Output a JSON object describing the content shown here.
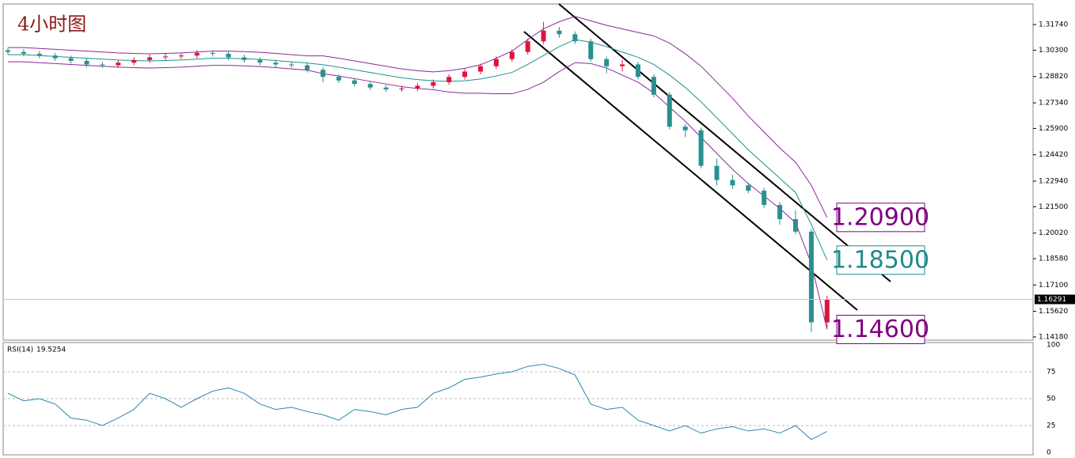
{
  "chart_data": [
    {
      "type": "candlestick",
      "title": "4小时图",
      "open": [
        1.303,
        1.302,
        1.301,
        1.3,
        1.2985,
        1.297,
        1.295,
        1.2945,
        1.296,
        1.2975,
        1.299,
        1.2995,
        1.3,
        1.3015,
        1.301,
        1.299,
        1.2975,
        1.296,
        1.295,
        1.2945,
        1.292,
        1.288,
        1.286,
        1.284,
        1.282,
        1.281,
        1.2815,
        1.283,
        1.285,
        1.288,
        1.291,
        1.294,
        1.298,
        1.302,
        1.308,
        1.314,
        1.312,
        1.308,
        1.298,
        1.294,
        1.295,
        1.288,
        1.278,
        1.26,
        1.258,
        1.238,
        1.23,
        1.227,
        1.224,
        1.216,
        1.208,
        1.201,
        1.15
      ],
      "high": [
        1.3045,
        1.3035,
        1.3025,
        1.3015,
        1.3,
        1.2985,
        1.2965,
        1.2975,
        1.299,
        1.3005,
        1.301,
        1.3015,
        1.303,
        1.303,
        1.3025,
        1.3005,
        1.299,
        1.2975,
        1.2965,
        1.296,
        1.2935,
        1.2895,
        1.2875,
        1.2855,
        1.2835,
        1.283,
        1.2845,
        1.2865,
        1.2895,
        1.2925,
        1.2955,
        1.2995,
        1.3035,
        1.3095,
        1.319,
        1.316,
        1.3135,
        1.3095,
        1.2995,
        1.2975,
        1.2965,
        1.2895,
        1.2795,
        1.2615,
        1.2595,
        1.242,
        1.233,
        1.2285,
        1.2255,
        1.2175,
        1.213,
        1.2025,
        1.165
      ],
      "low": [
        1.3005,
        1.2995,
        1.2985,
        1.297,
        1.2955,
        1.2935,
        1.293,
        1.293,
        1.2945,
        1.296,
        1.2975,
        1.298,
        1.2985,
        1.2995,
        1.2975,
        1.296,
        1.2945,
        1.2935,
        1.293,
        1.2905,
        1.285,
        1.2845,
        1.2825,
        1.2805,
        1.2795,
        1.2795,
        1.28,
        1.2815,
        1.2835,
        1.2865,
        1.2895,
        1.2925,
        1.2965,
        1.3005,
        1.3065,
        1.31,
        1.3065,
        1.2965,
        1.29,
        1.291,
        1.2865,
        1.2765,
        1.2585,
        1.254,
        1.2365,
        1.227,
        1.225,
        1.2225,
        1.2145,
        1.205,
        1.1995,
        1.1445,
        1.147
      ],
      "close": [
        1.302,
        1.301,
        1.3,
        1.2985,
        1.297,
        1.295,
        1.2945,
        1.296,
        1.2975,
        1.299,
        1.2995,
        1.3,
        1.3015,
        1.301,
        1.299,
        1.2975,
        1.296,
        1.295,
        1.2945,
        1.292,
        1.288,
        1.286,
        1.284,
        1.282,
        1.281,
        1.2815,
        1.283,
        1.285,
        1.288,
        1.291,
        1.294,
        1.298,
        1.302,
        1.308,
        1.314,
        1.312,
        1.308,
        1.298,
        1.294,
        1.295,
        1.288,
        1.278,
        1.26,
        1.258,
        1.238,
        1.23,
        1.227,
        1.224,
        1.216,
        1.208,
        1.201,
        1.15,
        1.1629
      ],
      "up_color": "#dc143c",
      "down_color": "#2a8f8f",
      "bands": [
        {
          "color": "#8b2a9b",
          "values": [
            1.3045,
            1.3045,
            1.304,
            1.3035,
            1.303,
            1.3025,
            1.302,
            1.3015,
            1.3012,
            1.301,
            1.3012,
            1.3015,
            1.302,
            1.3025,
            1.3025,
            1.3022,
            1.3018,
            1.3012,
            1.3005,
            1.2998,
            1.2998,
            1.2985,
            1.297,
            1.2955,
            1.294,
            1.2925,
            1.2915,
            1.2908,
            1.2915,
            1.2928,
            1.2948,
            1.2985,
            1.3025,
            1.309,
            1.315,
            1.319,
            1.322,
            1.3195,
            1.317,
            1.315,
            1.313,
            1.311,
            1.307,
            1.301,
            1.294,
            1.285,
            1.276,
            1.266,
            1.257,
            1.248,
            1.24,
            1.227,
            1.209
          ]
        },
        {
          "color": "#1f9090",
          "values": [
            1.3005,
            1.3005,
            1.3,
            1.2995,
            1.299,
            1.2985,
            1.298,
            1.2975,
            1.2972,
            1.297,
            1.2972,
            1.2975,
            1.298,
            1.2985,
            1.2985,
            1.2982,
            1.2978,
            1.2972,
            1.2965,
            1.2958,
            1.2948,
            1.2935,
            1.292,
            1.2905,
            1.289,
            1.2875,
            1.2865,
            1.2858,
            1.2855,
            1.2858,
            1.2868,
            1.2885,
            1.2905,
            1.295,
            1.3,
            1.305,
            1.309,
            1.3075,
            1.305,
            1.302,
            1.299,
            1.295,
            1.289,
            1.282,
            1.274,
            1.265,
            1.256,
            1.247,
            1.239,
            1.231,
            1.223,
            1.205,
            1.185
          ]
        },
        {
          "color": "#8b2a9b",
          "values": [
            1.2965,
            1.2965,
            1.296,
            1.2955,
            1.295,
            1.2945,
            1.294,
            1.2935,
            1.2932,
            1.293,
            1.2932,
            1.2935,
            1.294,
            1.2945,
            1.2945,
            1.2942,
            1.2938,
            1.2932,
            1.2925,
            1.2918,
            1.2898,
            1.2885,
            1.287,
            1.2855,
            1.284,
            1.2825,
            1.2815,
            1.2808,
            1.2795,
            1.2788,
            1.2788,
            1.2785,
            1.2785,
            1.281,
            1.285,
            1.291,
            1.296,
            1.2955,
            1.293,
            1.289,
            1.285,
            1.279,
            1.271,
            1.263,
            1.254,
            1.245,
            1.236,
            1.228,
            1.221,
            1.214,
            1.206,
            1.183,
            1.146
          ]
        }
      ],
      "ylim": [
        1.14,
        1.329
      ],
      "yticks": [
        {
          "value": 1.3174,
          "label": "1.31740"
        },
        {
          "value": 1.303,
          "label": "1.30300"
        },
        {
          "value": 1.2882,
          "label": "1.28820"
        },
        {
          "value": 1.2734,
          "label": "1.27340"
        },
        {
          "value": 1.259,
          "label": "1.25900"
        },
        {
          "value": 1.2442,
          "label": "1.24420"
        },
        {
          "value": 1.2294,
          "label": "1.22940"
        },
        {
          "value": 1.215,
          "label": "1.21500"
        },
        {
          "value": 1.2002,
          "label": "1.20020"
        },
        {
          "value": 1.1858,
          "label": "1.18580"
        },
        {
          "value": 1.171,
          "label": "1.17100"
        },
        {
          "value": 1.1562,
          "label": "1.15620"
        },
        {
          "value": 1.1418,
          "label": "1.14180"
        }
      ],
      "current_price": 1.16291,
      "annotations": [
        {
          "value": 1.209,
          "label": "1.20900",
          "color": "#800080"
        },
        {
          "value": 1.185,
          "label": "1.18500",
          "color": "#1f8a8a"
        },
        {
          "value": 1.146,
          "label": "1.14600",
          "color": "#800080"
        }
      ]
    },
    {
      "type": "line",
      "label": "RSI(14)",
      "color": "#2a86b0",
      "values": [
        55,
        48,
        50,
        45,
        32,
        30,
        25,
        32,
        40,
        55,
        50,
        42,
        50,
        57,
        60,
        55,
        45,
        40,
        42,
        38,
        35,
        30,
        40,
        38,
        35,
        40,
        42,
        55,
        60,
        68,
        70,
        73,
        75,
        80,
        82,
        78,
        72,
        45,
        40,
        42,
        30,
        25,
        20,
        25,
        18,
        22,
        24,
        20,
        22,
        18,
        25,
        12,
        19.5254
      ],
      "ylim": [
        0,
        100
      ],
      "yticks": [
        100,
        75,
        50,
        25,
        0
      ],
      "grid": true
    }
  ]
}
